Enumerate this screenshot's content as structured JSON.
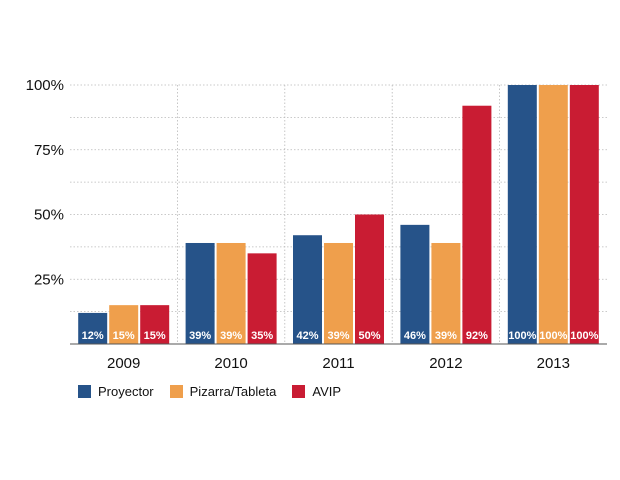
{
  "chart_data": {
    "type": "bar",
    "title": "",
    "xlabel": "",
    "ylabel": "",
    "categories": [
      "2009",
      "2010",
      "2011",
      "2012",
      "2013"
    ],
    "ylim": [
      0,
      100
    ],
    "yticks": [
      25,
      50,
      75,
      100
    ],
    "ytick_labels": [
      "25%",
      "50%",
      "75%",
      "100%"
    ],
    "series": [
      {
        "name": "Proyector",
        "color": "#265389",
        "values": [
          12,
          39,
          42,
          46,
          100
        ],
        "labels": [
          "12%",
          "39%",
          "42%",
          "46%",
          "100%"
        ]
      },
      {
        "name": "Pizarra/Tableta",
        "color": "#ef9f4c",
        "values": [
          15,
          39,
          39,
          39,
          100
        ],
        "labels": [
          "15%",
          "39%",
          "39%",
          "39%",
          "100%"
        ]
      },
      {
        "name": "AVIP",
        "color": "#c91c33",
        "values": [
          15,
          35,
          50,
          92,
          100
        ],
        "labels": [
          "15%",
          "35%",
          "50%",
          "92%",
          "100%"
        ]
      }
    ],
    "grid": true,
    "legend_position": "bottom-left"
  }
}
